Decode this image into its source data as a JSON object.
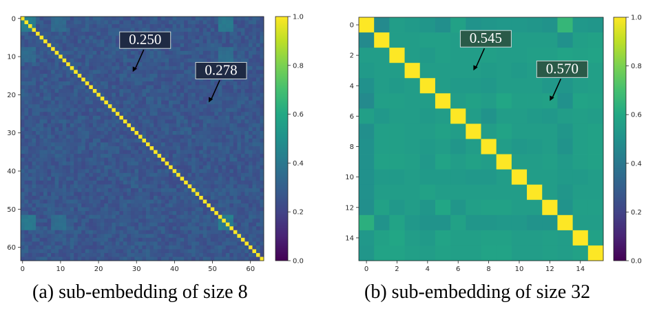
{
  "chart_data": [
    {
      "type": "heatmap",
      "id": "a",
      "caption": "(a) sub-embedding of size 8",
      "title": "",
      "xlabel": "",
      "ylabel": "",
      "n": 64,
      "colormap": "viridis",
      "vmin": 0.0,
      "vmax": 1.0,
      "diagonal_value": 1.0,
      "offdiag_mean": 0.27,
      "offdiag_spread": 0.05,
      "bright_blocks": [
        {
          "rows": [
            0,
            3
          ],
          "cols": [
            0,
            3
          ],
          "value": 0.42
        },
        {
          "rows": [
            52,
            55
          ],
          "cols": [
            0,
            3
          ],
          "value": 0.42
        },
        {
          "rows": [
            52,
            55
          ],
          "cols": [
            52,
            55
          ],
          "value": 0.42
        },
        {
          "rows": [
            0,
            3
          ],
          "cols": [
            52,
            55
          ],
          "value": 0.4
        },
        {
          "rows": [
            52,
            55
          ],
          "cols": [
            8,
            11
          ],
          "value": 0.36
        },
        {
          "rows": [
            8,
            11
          ],
          "cols": [
            0,
            3
          ],
          "value": 0.34
        }
      ],
      "xticks": [
        0,
        10,
        20,
        30,
        40,
        50,
        60
      ],
      "yticks": [
        0,
        10,
        20,
        30,
        40,
        50,
        60
      ],
      "colorbar_ticks": [
        "0.0",
        "0.2",
        "0.4",
        "0.6",
        "0.8",
        "1.0"
      ],
      "annotations": [
        {
          "label": "0.250",
          "target": [
            29,
            14
          ]
        },
        {
          "label": "0.278",
          "target": [
            49,
            22
          ]
        }
      ]
    },
    {
      "type": "heatmap",
      "id": "b",
      "caption": "(b) sub-embedding of size 32",
      "title": "",
      "xlabel": "",
      "ylabel": "",
      "n": 16,
      "colormap": "viridis",
      "vmin": 0.0,
      "vmax": 1.0,
      "values": [
        [
          1.0,
          0.47,
          0.55,
          0.54,
          0.52,
          0.49,
          0.57,
          0.51,
          0.52,
          0.53,
          0.53,
          0.52,
          0.51,
          0.66,
          0.53,
          0.52
        ],
        [
          0.47,
          1.0,
          0.55,
          0.55,
          0.56,
          0.56,
          0.55,
          0.54,
          0.55,
          0.55,
          0.55,
          0.55,
          0.55,
          0.5,
          0.56,
          0.57
        ],
        [
          0.55,
          0.55,
          1.0,
          0.55,
          0.54,
          0.56,
          0.55,
          0.55,
          0.56,
          0.55,
          0.55,
          0.56,
          0.56,
          0.58,
          0.57,
          0.58
        ],
        [
          0.54,
          0.55,
          0.55,
          1.0,
          0.55,
          0.55,
          0.55,
          0.55,
          0.545,
          0.55,
          0.54,
          0.55,
          0.54,
          0.54,
          0.55,
          0.56
        ],
        [
          0.5,
          0.55,
          0.54,
          0.55,
          1.0,
          0.55,
          0.54,
          0.54,
          0.53,
          0.55,
          0.55,
          0.55,
          0.53,
          0.52,
          0.55,
          0.56
        ],
        [
          0.47,
          0.56,
          0.56,
          0.55,
          0.55,
          1.0,
          0.55,
          0.57,
          0.55,
          0.59,
          0.56,
          0.56,
          0.57,
          0.5,
          0.58,
          0.57
        ],
        [
          0.56,
          0.53,
          0.55,
          0.55,
          0.54,
          0.55,
          1.0,
          0.55,
          0.51,
          0.55,
          0.55,
          0.54,
          0.53,
          0.55,
          0.56,
          0.55
        ],
        [
          0.49,
          0.56,
          0.56,
          0.55,
          0.55,
          0.57,
          0.55,
          1.0,
          0.55,
          0.58,
          0.55,
          0.55,
          0.55,
          0.52,
          0.56,
          0.57
        ],
        [
          0.5,
          0.56,
          0.56,
          0.55,
          0.54,
          0.55,
          0.52,
          0.55,
          1.0,
          0.55,
          0.53,
          0.54,
          0.55,
          0.51,
          0.56,
          0.57
        ],
        [
          0.5,
          0.57,
          0.57,
          0.56,
          0.53,
          0.58,
          0.55,
          0.57,
          0.55,
          1.0,
          0.55,
          0.55,
          0.56,
          0.54,
          0.56,
          0.57
        ],
        [
          0.5,
          0.54,
          0.54,
          0.55,
          0.54,
          0.54,
          0.54,
          0.53,
          0.53,
          0.55,
          1.0,
          0.55,
          0.55,
          0.54,
          0.54,
          0.55
        ],
        [
          0.5,
          0.55,
          0.55,
          0.55,
          0.57,
          0.55,
          0.55,
          0.55,
          0.55,
          0.55,
          0.55,
          1.0,
          0.55,
          0.52,
          0.55,
          0.55
        ],
        [
          0.49,
          0.57,
          0.53,
          0.55,
          0.52,
          0.59,
          0.52,
          0.56,
          0.57,
          0.57,
          0.55,
          0.55,
          1.0,
          0.51,
          0.56,
          0.56
        ],
        [
          0.63,
          0.51,
          0.58,
          0.53,
          0.51,
          0.51,
          0.57,
          0.52,
          0.52,
          0.53,
          0.53,
          0.51,
          0.51,
          1.0,
          0.55,
          0.55
        ],
        [
          0.53,
          0.57,
          0.59,
          0.55,
          0.54,
          0.58,
          0.56,
          0.56,
          0.57,
          0.57,
          0.55,
          0.55,
          0.56,
          0.55,
          1.0,
          0.57
        ],
        [
          0.52,
          0.58,
          0.58,
          0.56,
          0.55,
          0.57,
          0.56,
          0.56,
          0.58,
          0.58,
          0.55,
          0.55,
          0.56,
          0.55,
          0.57,
          1.0
        ]
      ],
      "xticks": [
        0,
        2,
        4,
        6,
        8,
        10,
        12,
        14
      ],
      "yticks": [
        0,
        2,
        4,
        6,
        8,
        10,
        12,
        14
      ],
      "colorbar_ticks": [
        "0.0",
        "0.2",
        "0.4",
        "0.6",
        "0.8",
        "1.0"
      ],
      "annotations": [
        {
          "label": "0.545",
          "target": [
            7,
            3
          ]
        },
        {
          "label": "0.570",
          "target": [
            12,
            5
          ]
        }
      ]
    }
  ],
  "captions": {
    "a": "(a) sub-embedding of size 8",
    "b": "(b) sub-embedding of size 32"
  },
  "annotation_box_colors": {
    "a": "#1f2a44",
    "b": "#2a5a48"
  }
}
